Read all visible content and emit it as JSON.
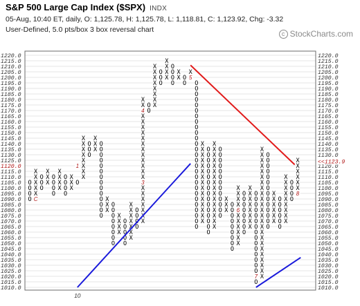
{
  "header": {
    "title": "S&P 500 Large Cap Index ($SPX)",
    "symbol": "INDX",
    "quote_line": "05-Aug, 10:40 ET, daily, O: 1,125.78, H: 1,125.78, L: 1,118.81, C: 1,123.92, Chg: -3.32",
    "settings_line": "User-Defined, 5.0 pts/box 3 box reversal chart",
    "watermark": "StockCharts.com",
    "copyright_symbol": "c"
  },
  "colors": {
    "support_line": "#1a1adb",
    "resistance_line": "#e11a1a",
    "month_label": "#b01616",
    "marks": "#000000"
  },
  "chart_data": {
    "type": "point-and-figure",
    "box_size": 5,
    "reversal": 3,
    "ylim": [
      1010,
      1220
    ],
    "y_ticks": [
      1010,
      1015,
      1020,
      1025,
      1030,
      1035,
      1040,
      1045,
      1050,
      1055,
      1060,
      1065,
      1070,
      1075,
      1080,
      1085,
      1090,
      1095,
      1100,
      1105,
      1110,
      1115,
      1120,
      1125,
      1130,
      1135,
      1140,
      1145,
      1150,
      1155,
      1160,
      1165,
      1170,
      1175,
      1180,
      1185,
      1190,
      1195,
      1200,
      1205,
      1210,
      1215,
      1220
    ],
    "y_tick_labels": [
      "1010.0",
      "1015.0",
      "1020.0",
      "1025.0",
      "1030.0",
      "1035.0",
      "1040.0",
      "1045.0",
      "1050.0",
      "1055.0",
      "1060.0",
      "1065.0",
      "1070.0",
      "1075.0",
      "1080.0",
      "1085.0",
      "1090.0",
      "1095.0",
      "1100.0",
      "1105.0",
      "1110.0",
      "1115.0",
      "1120.0",
      "1125.0",
      "1130.0",
      "1135.0",
      "1140.0",
      "1145.0",
      "1150.0",
      "1155.0",
      "1160.0",
      "1165.0",
      "1170.0",
      "1175.0",
      "1180.0",
      "1185.0",
      "1190.0",
      "1195.0",
      "1200.0",
      "1205.0",
      "1210.0",
      "1215.0",
      "1220.0"
    ],
    "left_highlight_label": "1120.0",
    "columns": [
      {
        "type": "O",
        "from": 1090,
        "to": 1105
      },
      {
        "type": "X",
        "from": 1095,
        "to": 1115
      },
      {
        "type": "O",
        "from": 1100,
        "to": 1110
      },
      {
        "type": "X",
        "from": 1105,
        "to": 1115
      },
      {
        "type": "O",
        "from": 1095,
        "to": 1110
      },
      {
        "type": "X",
        "from": 1100,
        "to": 1115
      },
      {
        "type": "O",
        "from": 1095,
        "to": 1110
      },
      {
        "type": "X",
        "from": 1100,
        "to": 1110
      },
      {
        "type": "O",
        "from": 1105,
        "to": 1105
      },
      {
        "type": "X",
        "from": 1110,
        "to": 1145
      },
      {
        "type": "O",
        "from": 1130,
        "to": 1140
      },
      {
        "type": "X",
        "from": 1135,
        "to": 1145
      },
      {
        "type": "O",
        "from": 1075,
        "to": 1140
      },
      {
        "type": "X",
        "from": 1080,
        "to": 1090
      },
      {
        "type": "O",
        "from": 1050,
        "to": 1085
      },
      {
        "type": "X",
        "from": 1060,
        "to": 1075
      },
      {
        "type": "O",
        "from": 1050,
        "to": 1070
      },
      {
        "type": "X",
        "from": 1055,
        "to": 1085
      },
      {
        "type": "O",
        "from": 1065,
        "to": 1080
      },
      {
        "type": "X",
        "from": 1070,
        "to": 1180
      },
      {
        "type": "O",
        "from": 1170,
        "to": 1175
      },
      {
        "type": "X",
        "from": 1175,
        "to": 1210
      },
      {
        "type": "O",
        "from": 1195,
        "to": 1205
      },
      {
        "type": "X",
        "from": 1200,
        "to": 1215
      },
      {
        "type": "O",
        "from": 1195,
        "to": 1210
      },
      {
        "type": "X",
        "from": 1200,
        "to": 1205
      },
      {
        "type": "O",
        "from": 1195,
        "to": 1200
      },
      {
        "type": "X",
        "from": 1200,
        "to": 1205
      },
      {
        "type": "O",
        "from": 1065,
        "to": 1195
      },
      {
        "type": "X",
        "from": 1070,
        "to": 1140
      },
      {
        "type": "O",
        "from": 1060,
        "to": 1135
      },
      {
        "type": "X",
        "from": 1065,
        "to": 1140
      },
      {
        "type": "O",
        "from": 1075,
        "to": 1135
      },
      {
        "type": "X",
        "from": 1080,
        "to": 1090
      },
      {
        "type": "O",
        "from": 1045,
        "to": 1085
      },
      {
        "type": "X",
        "from": 1050,
        "to": 1100
      },
      {
        "type": "O",
        "from": 1060,
        "to": 1095
      },
      {
        "type": "X",
        "from": 1065,
        "to": 1100
      },
      {
        "type": "O",
        "from": 1015,
        "to": 1095
      },
      {
        "type": "X",
        "from": 1020,
        "to": 1135
      },
      {
        "type": "O",
        "from": 1065,
        "to": 1130
      },
      {
        "type": "X",
        "from": 1070,
        "to": 1095
      },
      {
        "type": "O",
        "from": 1065,
        "to": 1090
      },
      {
        "type": "X",
        "from": 1070,
        "to": 1110
      },
      {
        "type": "O",
        "from": 1090,
        "to": 1105
      },
      {
        "type": "X",
        "from": 1095,
        "to": 1125
      }
    ],
    "month_markers": [
      {
        "label": "C",
        "col": 1,
        "price": 1090
      },
      {
        "label": "1",
        "col": 8,
        "price": 1120
      },
      {
        "label": "3",
        "col": 19,
        "price": 1105
      },
      {
        "label": "4",
        "col": 19,
        "price": 1170
      },
      {
        "label": "5",
        "col": 27,
        "price": 1200
      },
      {
        "label": "6",
        "col": 35,
        "price": 1080
      },
      {
        "label": "7",
        "col": 38,
        "price": 1020
      },
      {
        "label": "8",
        "col": 45,
        "price": 1095
      }
    ],
    "trend_lines": [
      {
        "kind": "support",
        "x_start": 8,
        "p_start": 1010,
        "x_end": 27,
        "p_end": 1122
      },
      {
        "kind": "resistance",
        "x_start": 27,
        "p_start": 1211,
        "x_end": 44.5,
        "p_end": 1121
      },
      {
        "kind": "support",
        "x_start": 38,
        "p_start": 1010,
        "x_end": 45.5,
        "p_end": 1037
      }
    ],
    "year_label": {
      "text": "10",
      "col": 8
    },
    "last_price_label": "<<1123.9",
    "last_price": 1123.92
  }
}
